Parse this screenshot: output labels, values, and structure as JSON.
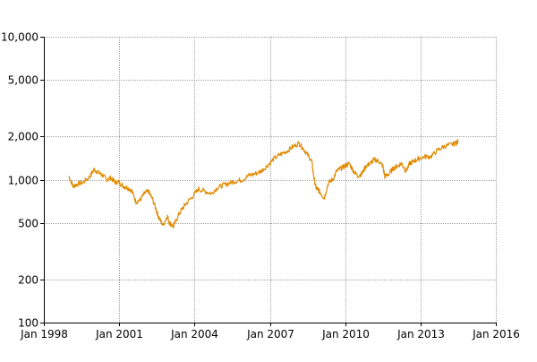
{
  "chart_data": {
    "type": "line",
    "title": "",
    "xlabel": "",
    "ylabel": "",
    "y_scale": "log",
    "grid": true,
    "legend": "none",
    "ylim": [
      100,
      10000
    ],
    "xlim": [
      "1998-01-01",
      "2016-01-01"
    ],
    "y_ticks": [
      {
        "value": 10000,
        "label": "10,000"
      },
      {
        "value": 5000,
        "label": "5,000"
      },
      {
        "value": 2000,
        "label": "2,000"
      },
      {
        "value": 1000,
        "label": "1,000"
      },
      {
        "value": 500,
        "label": "500"
      },
      {
        "value": 200,
        "label": "200"
      },
      {
        "value": 100,
        "label": "100"
      }
    ],
    "x_ticks": [
      {
        "value": "1998-01-01",
        "label": "Jan 1998"
      },
      {
        "value": "2001-01-01",
        "label": "Jan 2001"
      },
      {
        "value": "2004-01-01",
        "label": "Jan 2004"
      },
      {
        "value": "2007-01-01",
        "label": "Jan 2007"
      },
      {
        "value": "2010-01-01",
        "label": "Jan 2010"
      },
      {
        "value": "2013-01-01",
        "label": "Jan 2013"
      },
      {
        "value": "2016-01-01",
        "label": "Jan 2016"
      }
    ],
    "colors": {
      "line": "#e08a00",
      "grid": "#a0a0a0",
      "axis": "#000000"
    },
    "series": [
      {
        "x": [
          "1999-01-01",
          "1999-03-01",
          "1999-05-01",
          "1999-08-01",
          "1999-11-01",
          "2000-01-01",
          "2000-03-01",
          "2000-05-01",
          "2000-07-01",
          "2000-09-01",
          "2000-11-01",
          "2001-01-01",
          "2001-03-01",
          "2001-05-01",
          "2001-07-01",
          "2001-09-01",
          "2001-11-01",
          "2002-01-01",
          "2002-03-01",
          "2002-05-01",
          "2002-07-01",
          "2002-08-01",
          "2002-10-01",
          "2002-12-01",
          "2003-01-01",
          "2003-03-01",
          "2003-05-01",
          "2003-07-01",
          "2003-09-01",
          "2003-12-01",
          "2004-03-01",
          "2004-06-01",
          "2004-09-01",
          "2004-12-01",
          "2005-03-01",
          "2005-06-01",
          "2005-09-01",
          "2005-12-01",
          "2006-03-01",
          "2006-06-01",
          "2006-09-01",
          "2006-12-01",
          "2007-03-01",
          "2007-06-01",
          "2007-09-01",
          "2007-12-01",
          "2008-03-01",
          "2008-05-01",
          "2008-07-01",
          "2008-09-01",
          "2008-10-01",
          "2008-11-01",
          "2008-12-01",
          "2009-01-01",
          "2009-03-01",
          "2009-05-01",
          "2009-07-01",
          "2009-09-01",
          "2009-11-01",
          "2010-01-01",
          "2010-03-01",
          "2010-05-01",
          "2010-07-01",
          "2010-09-01",
          "2010-11-01",
          "2011-01-01",
          "2011-03-01",
          "2011-05-01",
          "2011-07-01",
          "2011-08-01",
          "2011-10-01",
          "2011-12-01",
          "2012-02-01",
          "2012-04-01",
          "2012-06-01",
          "2012-08-01",
          "2012-10-01",
          "2012-12-01",
          "2013-03-01",
          "2013-06-01",
          "2013-09-01",
          "2013-12-01",
          "2014-03-01",
          "2014-06-01",
          "2014-07-01"
        ],
        "values": [
          1060,
          900,
          930,
          960,
          1050,
          1180,
          1120,
          1080,
          1000,
          1030,
          960,
          960,
          900,
          880,
          840,
          700,
          720,
          800,
          830,
          730,
          600,
          540,
          480,
          560,
          500,
          470,
          550,
          620,
          680,
          760,
          860,
          830,
          800,
          880,
          920,
          950,
          980,
          1000,
          1070,
          1100,
          1150,
          1260,
          1400,
          1500,
          1580,
          1700,
          1800,
          1650,
          1500,
          1350,
          1050,
          880,
          850,
          820,
          740,
          950,
          1000,
          1150,
          1200,
          1250,
          1300,
          1150,
          1060,
          1100,
          1250,
          1300,
          1380,
          1350,
          1250,
          1050,
          1100,
          1200,
          1250,
          1300,
          1150,
          1300,
          1350,
          1400,
          1450,
          1450,
          1600,
          1700,
          1750,
          1800,
          1850
        ]
      }
    ]
  }
}
